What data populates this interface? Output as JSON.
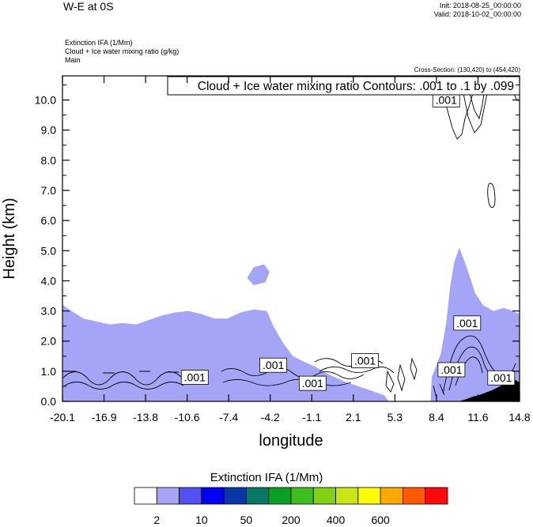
{
  "header": {
    "title": "W-E at 0S",
    "init": "Init: 2018-08-25_00:00:00",
    "valid": "Valid: 2018-10-02_00:00:00",
    "field1": "Extinction IFA   (1/Mm)",
    "field2": "Cloud + Ice water mixing ratio   (g/kg)",
    "field3": "Main",
    "cross_section": "Cross-Section: (130,420) to (454,420)"
  },
  "chart_data": {
    "type": "heatmap",
    "xlabel": "longitude",
    "ylabel": "Height (km)",
    "xlim": [
      -20.1,
      14.8
    ],
    "ylim": [
      0,
      10.8
    ],
    "x_ticks": [
      "-20.1",
      "-16.9",
      "-13.8",
      "-10.6",
      "-7.4",
      "-4.2",
      "-1.1",
      "2.1",
      "5.3",
      "8.4",
      "11.6",
      "14.8"
    ],
    "y_ticks": [
      {
        "value": 0,
        "label": "0.0"
      },
      {
        "value": 1,
        "label": "1.0"
      },
      {
        "value": 2,
        "label": "2.0"
      },
      {
        "value": 3,
        "label": "3.0"
      },
      {
        "value": 4,
        "label": "4.0"
      },
      {
        "value": 5,
        "label": "5.0"
      },
      {
        "value": 6,
        "label": "6.0"
      },
      {
        "value": 7,
        "label": "7.0"
      },
      {
        "value": 8,
        "label": "8.0"
      },
      {
        "value": 9,
        "label": "9.0"
      },
      {
        "value": 10,
        "label": "10.0"
      }
    ],
    "contour_info": "Cloud + Ice water mixing ratio Contours: .001 to .1 by .099",
    "contour_labels": [
      {
        "text": ".001",
        "x": 9.2,
        "y": 10.0
      },
      {
        "text": ".001",
        "x": 10.8,
        "y": 2.6
      },
      {
        "text": ".001",
        "x": 3.0,
        "y": 1.35
      },
      {
        "text": ".001",
        "x": -4.0,
        "y": 1.2
      },
      {
        "text": ".001",
        "x": -10.0,
        "y": 0.8
      },
      {
        "text": ".001",
        "x": -1.0,
        "y": 0.6
      },
      {
        "text": ".001",
        "x": 9.6,
        "y": 1.05
      },
      {
        "text": ".001",
        "x": 13.4,
        "y": 0.78
      }
    ],
    "extinction_regions": [
      {
        "level": 2,
        "points": [
          [
            -20.1,
            0
          ],
          [
            -20.1,
            3.2
          ],
          [
            -19.4,
            3.0
          ],
          [
            -18.5,
            2.75
          ],
          [
            -17.5,
            2.65
          ],
          [
            -16.5,
            2.55
          ],
          [
            -15.5,
            2.6
          ],
          [
            -14.5,
            2.55
          ],
          [
            -13.5,
            2.7
          ],
          [
            -12.5,
            2.85
          ],
          [
            -11.5,
            2.95
          ],
          [
            -10.5,
            3.0
          ],
          [
            -9.5,
            2.9
          ],
          [
            -8.5,
            2.75
          ],
          [
            -7.5,
            2.75
          ],
          [
            -6.5,
            2.95
          ],
          [
            -5.5,
            3.05
          ],
          [
            -4.5,
            3.0
          ],
          [
            -4.0,
            2.5
          ],
          [
            -3.2,
            1.9
          ],
          [
            -2.5,
            1.5
          ],
          [
            -1.6,
            1.3
          ],
          [
            -0.8,
            1.15
          ],
          [
            0.2,
            0.9
          ],
          [
            1.5,
            0.65
          ],
          [
            2.5,
            0.5
          ],
          [
            3.5,
            0.35
          ],
          [
            4.5,
            0.2
          ],
          [
            4.8,
            0
          ]
        ]
      },
      {
        "level": 2,
        "points": [
          [
            -6.0,
            4.1
          ],
          [
            -5.5,
            4.45
          ],
          [
            -4.7,
            4.55
          ],
          [
            -4.3,
            4.3
          ],
          [
            -4.6,
            3.95
          ],
          [
            -5.5,
            3.85
          ]
        ]
      },
      {
        "level": 2,
        "points": [
          [
            8.0,
            0
          ],
          [
            8.1,
            0.8
          ],
          [
            8.8,
            1.6
          ],
          [
            9.2,
            2.6
          ],
          [
            9.5,
            3.8
          ],
          [
            9.8,
            4.6
          ],
          [
            10.2,
            5.1
          ],
          [
            10.8,
            4.4
          ],
          [
            11.4,
            3.6
          ],
          [
            12.0,
            3.2
          ],
          [
            12.8,
            3.0
          ],
          [
            13.6,
            3.1
          ],
          [
            14.3,
            3.0
          ],
          [
            14.8,
            2.9
          ],
          [
            14.8,
            0
          ]
        ]
      },
      {
        "level": 2,
        "points": [
          [
            -14.8,
            1.7
          ],
          [
            -13.6,
            1.85
          ],
          [
            -12.5,
            1.78
          ],
          [
            -11.4,
            1.82
          ],
          [
            -10.4,
            1.7
          ],
          [
            -11.5,
            1.5
          ],
          [
            -13.0,
            1.45
          ],
          [
            -14.2,
            1.5
          ]
        ]
      }
    ],
    "colorbar": {
      "title": "Extinction IFA  (1/Mm)",
      "colors": [
        "#ffffff",
        "#a5a5f8",
        "#5050f4",
        "#0000f4",
        "#0a37a8",
        "#0a7864",
        "#0aa028",
        "#3cbe1e",
        "#82d214",
        "#c8e614",
        "#ffff00",
        "#ffaa00",
        "#ff5a00",
        "#ff0a0a"
      ],
      "labels": [
        "2",
        "10",
        "50",
        "200",
        "400",
        "600"
      ]
    }
  }
}
